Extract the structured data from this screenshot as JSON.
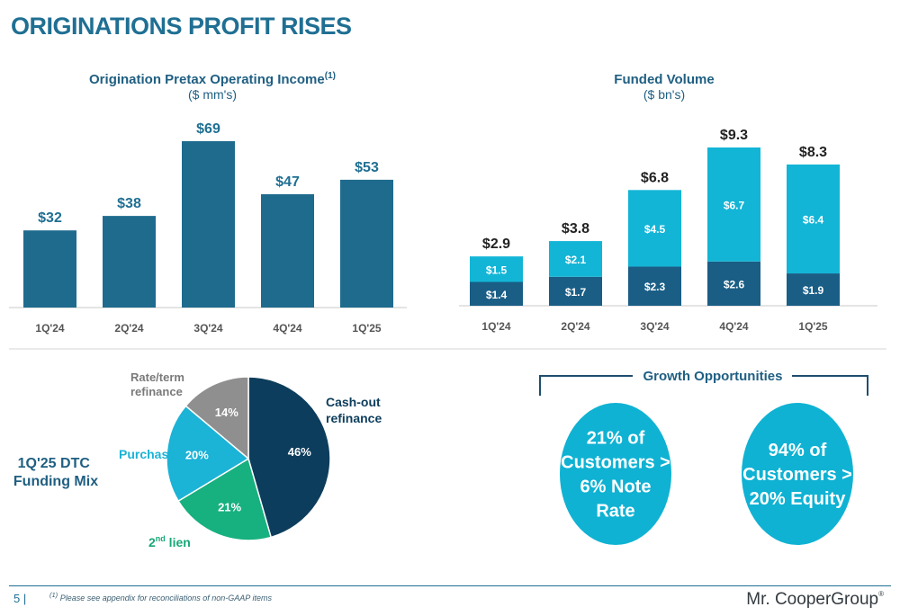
{
  "page": {
    "title": "ORIGINATIONS PROFIT RISES",
    "page_number": "5 |",
    "footnote_mark": "(1)",
    "footnote": "Please see appendix for reconciliations of non-GAAP items",
    "logo": "Mr. CooperGroup",
    "logo_mark": "®"
  },
  "colors": {
    "title": "#1f6f93",
    "bar_income": "#1f6b8e",
    "funded_top": "#13b5d6",
    "funded_bottom": "#1a5e86",
    "pie_cashout": "#0d3d5c",
    "pie_2ndlien": "#17b07f",
    "pie_purchase": "#1bb3d6",
    "pie_rateterm": "#8f8f8f",
    "bubble": "#0fb2d3"
  },
  "chart_data": [
    {
      "type": "bar",
      "title": "Origination Pretax Operating Income",
      "title_sup": "(1)",
      "subtitle": "($ mm's)",
      "categories": [
        "1Q'24",
        "2Q'24",
        "3Q'24",
        "4Q'24",
        "1Q'25"
      ],
      "values": [
        32,
        38,
        69,
        47,
        53
      ],
      "data_labels": [
        "$32",
        "$38",
        "$69",
        "$47",
        "$53"
      ],
      "ylim": [
        0,
        69
      ],
      "grid": false
    },
    {
      "type": "bar",
      "stacked": true,
      "title": "Funded Volume",
      "subtitle": "($ bn's)",
      "categories": [
        "1Q'24",
        "2Q'24",
        "3Q'24",
        "4Q'24",
        "1Q'25"
      ],
      "series": [
        {
          "values": [
            1.4,
            1.7,
            2.3,
            2.6,
            1.9
          ],
          "labels": [
            "$1.4",
            "$1.7",
            "$2.3",
            "$2.6",
            "$1.9"
          ]
        },
        {
          "values": [
            1.5,
            2.1,
            4.5,
            6.7,
            6.4
          ],
          "labels": [
            "$1.5",
            "$2.1",
            "$4.5",
            "$6.7",
            "$6.4"
          ]
        }
      ],
      "totals": [
        2.9,
        3.8,
        6.8,
        9.3,
        8.3
      ],
      "total_labels": [
        "$2.9",
        "$3.8",
        "$6.8",
        "$9.3",
        "$8.3"
      ],
      "ylim": [
        0,
        9.3
      ],
      "grid": false
    },
    {
      "type": "pie",
      "title": "1Q'25 DTC Funding Mix",
      "slices": [
        {
          "name": "Cash-out refinance",
          "value": 46,
          "label": "46%"
        },
        {
          "name": "2nd lien",
          "value": 21,
          "label": "21%"
        },
        {
          "name": "Purchase",
          "value": 20,
          "label": "20%"
        },
        {
          "name": "Rate/term refinance",
          "value": 14,
          "label": "14%"
        }
      ]
    }
  ],
  "pie_labels": {
    "cashout": [
      "Cash-out",
      "refinance"
    ],
    "lien_base": "2",
    "lien_sup": "nd",
    "lien_rest": " lien",
    "purchase": "Purchase",
    "rateterm": [
      "Rate/term",
      "refinance"
    ],
    "title": [
      "1Q'25 DTC",
      "Funding Mix"
    ]
  },
  "growth": {
    "title": "Growth Opportunities",
    "bubbles": [
      {
        "lines": [
          "21% of",
          "Customers >",
          "6% Note",
          "Rate"
        ]
      },
      {
        "lines": [
          "94% of",
          "Customers >",
          "20% Equity"
        ]
      }
    ]
  }
}
